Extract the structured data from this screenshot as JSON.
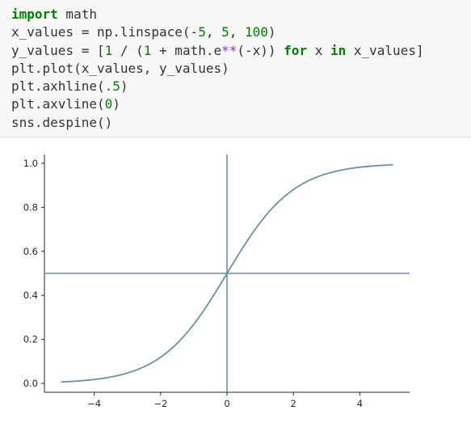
{
  "code_cell": {
    "lines": [
      [
        {
          "t": "import",
          "c": "kw"
        },
        {
          "t": " math",
          "c": ""
        }
      ],
      [
        {
          "t": "x_values = np.linspace(-",
          "c": ""
        },
        {
          "t": "5",
          "c": "num"
        },
        {
          "t": ", ",
          "c": ""
        },
        {
          "t": "5",
          "c": "num"
        },
        {
          "t": ", ",
          "c": ""
        },
        {
          "t": "100",
          "c": "num"
        },
        {
          "t": ")",
          "c": ""
        }
      ],
      [
        {
          "t": "y_values = [",
          "c": ""
        },
        {
          "t": "1",
          "c": "num"
        },
        {
          "t": " / (",
          "c": ""
        },
        {
          "t": "1",
          "c": "num"
        },
        {
          "t": " + math.e",
          "c": ""
        },
        {
          "t": "**",
          "c": "op"
        },
        {
          "t": "(-x)) ",
          "c": ""
        },
        {
          "t": "for",
          "c": "kw"
        },
        {
          "t": " x ",
          "c": ""
        },
        {
          "t": "in",
          "c": "kw"
        },
        {
          "t": " x_values]",
          "c": ""
        }
      ],
      [
        {
          "t": "plt.plot(x_values, y_values)",
          "c": ""
        }
      ],
      [
        {
          "t": "plt.axhline(",
          "c": ""
        },
        {
          "t": ".5",
          "c": "num"
        },
        {
          "t": ")",
          "c": ""
        }
      ],
      [
        {
          "t": "plt.axvline(",
          "c": ""
        },
        {
          "t": "0",
          "c": "num"
        },
        {
          "t": ")",
          "c": ""
        }
      ],
      [
        {
          "t": "sns.despine()",
          "c": ""
        }
      ]
    ]
  },
  "chart_data": {
    "type": "line",
    "title": "",
    "xlabel": "",
    "ylabel": "",
    "xlim": [
      -5.5,
      5.5
    ],
    "ylim": [
      -0.04,
      1.04
    ],
    "x_ticks": [
      -4,
      -2,
      0,
      2,
      4
    ],
    "x_tick_labels": [
      "−4",
      "−2",
      "0",
      "2",
      "4"
    ],
    "y_ticks": [
      0.0,
      0.2,
      0.4,
      0.6,
      0.8,
      1.0
    ],
    "y_tick_labels": [
      "0.0",
      "0.2",
      "0.4",
      "0.6",
      "0.8",
      "1.0"
    ],
    "grid": false,
    "despine": true,
    "line_color": "#6a8fa8",
    "series": [
      {
        "function": "1 / (1 + e^(-x))",
        "x_start": -5,
        "x_end": 5,
        "num_points": 100
      }
    ],
    "reference_lines": [
      {
        "orientation": "horizontal",
        "value": 0.5
      },
      {
        "orientation": "vertical",
        "value": 0
      }
    ]
  },
  "colors": {
    "cell_background": "#f7f7f7",
    "keyword": "#008000",
    "number": "#008000",
    "operator": "#aa22ff",
    "plot_line": "#6a8fa8",
    "axis": "#262626"
  }
}
